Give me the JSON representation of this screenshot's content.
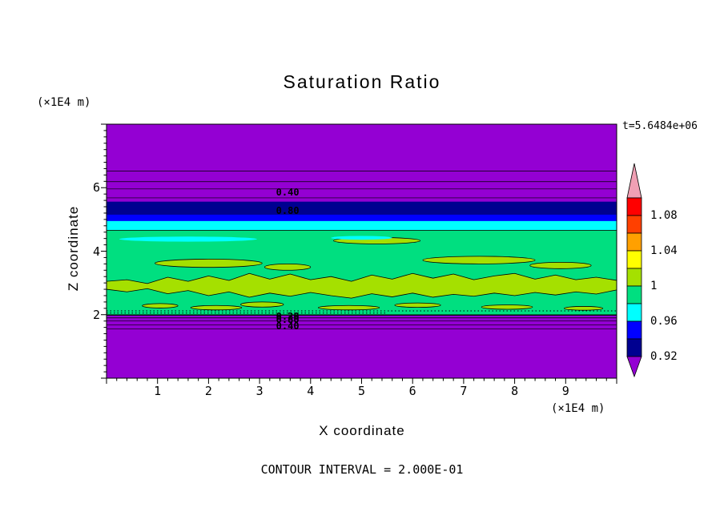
{
  "chart_data": {
    "type": "heatmap",
    "title": "Saturation Ratio",
    "xlabel": "X coordinate",
    "ylabel": "Z coordinate",
    "x_unit": "(×1E4 m)",
    "z_unit": "(×1E4 m)",
    "time_label": "t=5.6484e+06",
    "footnote": "CONTOUR INTERVAL = 2.000E-01",
    "contour_interval": 0.2,
    "x_range": [
      0,
      10
    ],
    "z_range": [
      0,
      8
    ],
    "x_ticks": [
      1,
      2,
      3,
      4,
      5,
      6,
      7,
      8,
      9
    ],
    "z_ticks": [
      2,
      4,
      6
    ],
    "x_minor_step": 0.2,
    "z_minor_step": 0.2,
    "bands": [
      {
        "name": "background-low-saturation",
        "color": "#9400D3",
        "z": [
          0,
          8
        ]
      },
      {
        "name": "band-0.92-0.94",
        "color": "#000090",
        "z": [
          4.88,
          5.56
        ]
      },
      {
        "name": "band-0.94-0.96",
        "color": "#0000FF",
        "z": [
          4.7,
          5.15
        ]
      },
      {
        "name": "band-0.96-0.98",
        "color": "#00FFFF",
        "z": [
          4.45,
          4.95
        ]
      },
      {
        "name": "band-0.98-1.00",
        "color": "#00DF80",
        "z": [
          1.99,
          4.66
        ]
      }
    ],
    "yellow_band": {
      "color": "#A5E000",
      "stroke": "#000000",
      "x": [
        0,
        0.4,
        0.8,
        1.2,
        1.6,
        2.0,
        2.4,
        2.8,
        3.2,
        3.6,
        4.0,
        4.4,
        4.8,
        5.2,
        5.6,
        6.0,
        6.4,
        6.8,
        7.2,
        7.6,
        8.0,
        8.4,
        8.8,
        9.2,
        9.6,
        10
      ],
      "top": [
        3.05,
        3.1,
        2.98,
        3.18,
        3.05,
        3.22,
        3.08,
        3.3,
        3.12,
        3.28,
        3.1,
        3.2,
        3.05,
        3.25,
        3.12,
        3.3,
        3.15,
        3.28,
        3.1,
        3.22,
        3.3,
        3.12,
        3.25,
        3.1,
        3.18,
        3.08
      ],
      "bottom": [
        2.8,
        2.72,
        2.82,
        2.66,
        2.76,
        2.6,
        2.72,
        2.55,
        2.68,
        2.58,
        2.7,
        2.6,
        2.52,
        2.66,
        2.56,
        2.68,
        2.55,
        2.64,
        2.58,
        2.68,
        2.6,
        2.7,
        2.62,
        2.72,
        2.65,
        2.78
      ]
    },
    "blobs": [
      {
        "cx": 2.0,
        "cz": 3.62,
        "rx": 1.05,
        "rz": 0.13,
        "color": "#A5E000",
        "stroke": "#000000"
      },
      {
        "cx": 3.55,
        "cz": 3.5,
        "rx": 0.45,
        "rz": 0.1,
        "color": "#A5E000",
        "stroke": "#000000"
      },
      {
        "cx": 5.3,
        "cz": 4.33,
        "rx": 0.85,
        "rz": 0.1,
        "color": "#A5E000",
        "stroke": "#000000"
      },
      {
        "cx": 7.3,
        "cz": 3.72,
        "rx": 1.1,
        "rz": 0.12,
        "color": "#A5E000",
        "stroke": "#000000"
      },
      {
        "cx": 8.9,
        "cz": 3.55,
        "rx": 0.6,
        "rz": 0.1,
        "color": "#A5E000",
        "stroke": "#000000"
      },
      {
        "cx": 1.05,
        "cz": 2.28,
        "rx": 0.35,
        "rz": 0.07,
        "color": "#A5E000",
        "stroke": "#000000"
      },
      {
        "cx": 2.15,
        "cz": 2.22,
        "rx": 0.5,
        "rz": 0.07,
        "color": "#A5E000",
        "stroke": "#000000"
      },
      {
        "cx": 3.05,
        "cz": 2.32,
        "rx": 0.42,
        "rz": 0.08,
        "color": "#A5E000",
        "stroke": "#000000"
      },
      {
        "cx": 4.75,
        "cz": 2.22,
        "rx": 0.6,
        "rz": 0.07,
        "color": "#A5E000",
        "stroke": "#000000"
      },
      {
        "cx": 6.1,
        "cz": 2.3,
        "rx": 0.45,
        "rz": 0.07,
        "color": "#A5E000",
        "stroke": "#000000"
      },
      {
        "cx": 7.85,
        "cz": 2.24,
        "rx": 0.5,
        "rz": 0.07,
        "color": "#A5E000",
        "stroke": "#000000"
      },
      {
        "cx": 9.35,
        "cz": 2.2,
        "rx": 0.38,
        "rz": 0.06,
        "color": "#A5E000",
        "stroke": "#000000"
      },
      {
        "cx": 1.6,
        "cz": 4.38,
        "rx": 1.35,
        "rz": 0.08,
        "color": "#00FFFF",
        "stroke": "none"
      },
      {
        "cx": 5.0,
        "cz": 4.42,
        "rx": 0.6,
        "rz": 0.06,
        "color": "#00FFFF",
        "stroke": "none"
      }
    ],
    "contour_lines": [
      {
        "z": 6.52
      },
      {
        "z": 6.19
      },
      {
        "z": 5.96
      },
      {
        "z": 5.68
      },
      {
        "z": 4.66
      },
      {
        "z": 1.99,
        "w": 1.4
      },
      {
        "z": 1.9
      },
      {
        "z": 1.8
      },
      {
        "z": 1.68
      },
      {
        "z": 1.55
      }
    ],
    "dashed_lines": [
      {
        "z": 2.12,
        "x": [
          0,
          10
        ]
      },
      {
        "z": 2.05,
        "x": [
          0,
          5.5
        ]
      }
    ],
    "contour_labels": [
      {
        "text": "0.40",
        "x": 3.55,
        "z": 5.86
      },
      {
        "text": "0.80",
        "x": 3.55,
        "z": 5.27
      },
      {
        "text": "0.20",
        "x": 3.55,
        "z": 1.94
      },
      {
        "text": "0.80",
        "x": 3.55,
        "z": 1.84
      },
      {
        "text": "0.40",
        "x": 3.55,
        "z": 1.64
      }
    ],
    "colorbar": {
      "colors": [
        "#F0A0B4",
        "#FF0000",
        "#FF4000",
        "#FFA000",
        "#FFFF00",
        "#A5E000",
        "#00DF80",
        "#00FFFF",
        "#0000FF",
        "#000090",
        "#9400D3"
      ],
      "tick_labels": [
        "1.08",
        "1.04",
        "1",
        "0.96",
        "0.92"
      ],
      "tick_values": [
        1.08,
        1.04,
        1,
        0.96,
        0.92
      ]
    }
  }
}
